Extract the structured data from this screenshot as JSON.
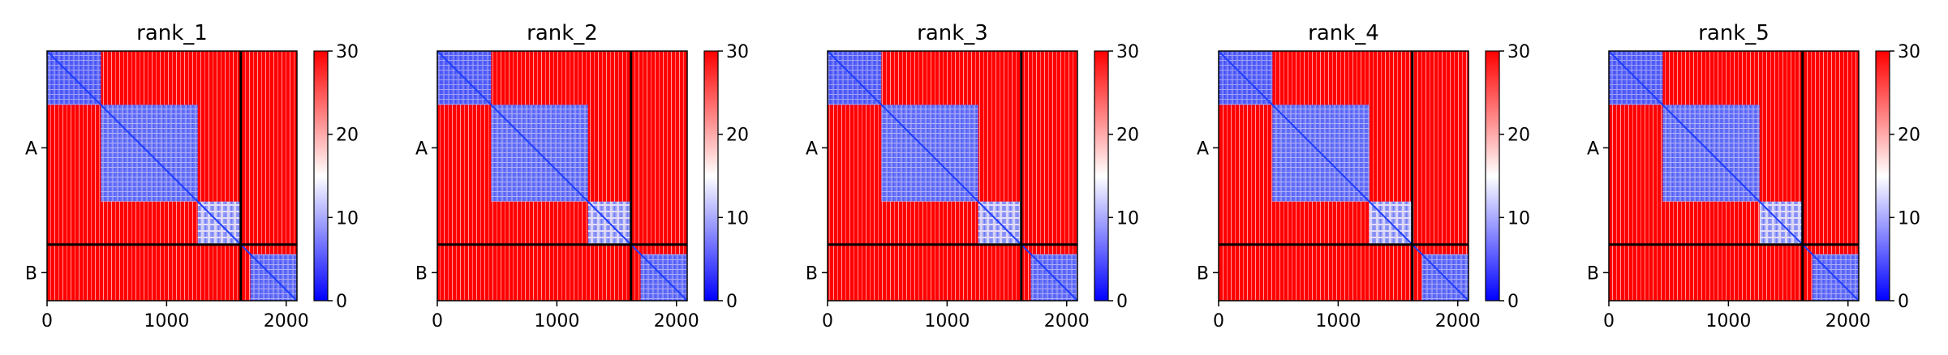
{
  "figure": {
    "panel_titles": [
      "rank_1",
      "rank_2",
      "rank_3",
      "rank_4",
      "rank_5"
    ]
  },
  "chart_data": {
    "type": "heatmap",
    "description": "PAE-style matrices for 5 ranked models; 2 chains (A, B) separated by black lines",
    "panels": [
      {
        "title": "rank_1"
      },
      {
        "title": "rank_2"
      },
      {
        "title": "rank_3"
      },
      {
        "title": "rank_4"
      },
      {
        "title": "rank_5"
      }
    ],
    "matrix_size": 2090,
    "chain_boundary": 1620,
    "chains": [
      {
        "label": "A",
        "start": 0,
        "end": 1620
      },
      {
        "label": "B",
        "start": 1620,
        "end": 2090
      }
    ],
    "x_ticks": [
      0,
      1000,
      2000
    ],
    "x_tick_labels": [
      "0",
      "1000",
      "2000"
    ],
    "y_tick_labels": [
      "A",
      "B"
    ],
    "colorbar": {
      "vmin": 0,
      "vmax": 30,
      "ticks": [
        0,
        10,
        20,
        30
      ],
      "tick_labels": [
        "0",
        "10",
        "20",
        "30"
      ],
      "colormap": "bwr",
      "colors": [
        "#0000ff",
        "#ffffff",
        "#ff0000"
      ]
    },
    "low_error_blocks": [
      {
        "start": 0,
        "end": 450,
        "level": 5
      },
      {
        "start": 450,
        "end": 1260,
        "level": 8
      },
      {
        "start": 1260,
        "end": 1620,
        "level": 12
      },
      {
        "start": 1700,
        "end": 2090,
        "level": 7
      }
    ],
    "background_level": 30
  }
}
